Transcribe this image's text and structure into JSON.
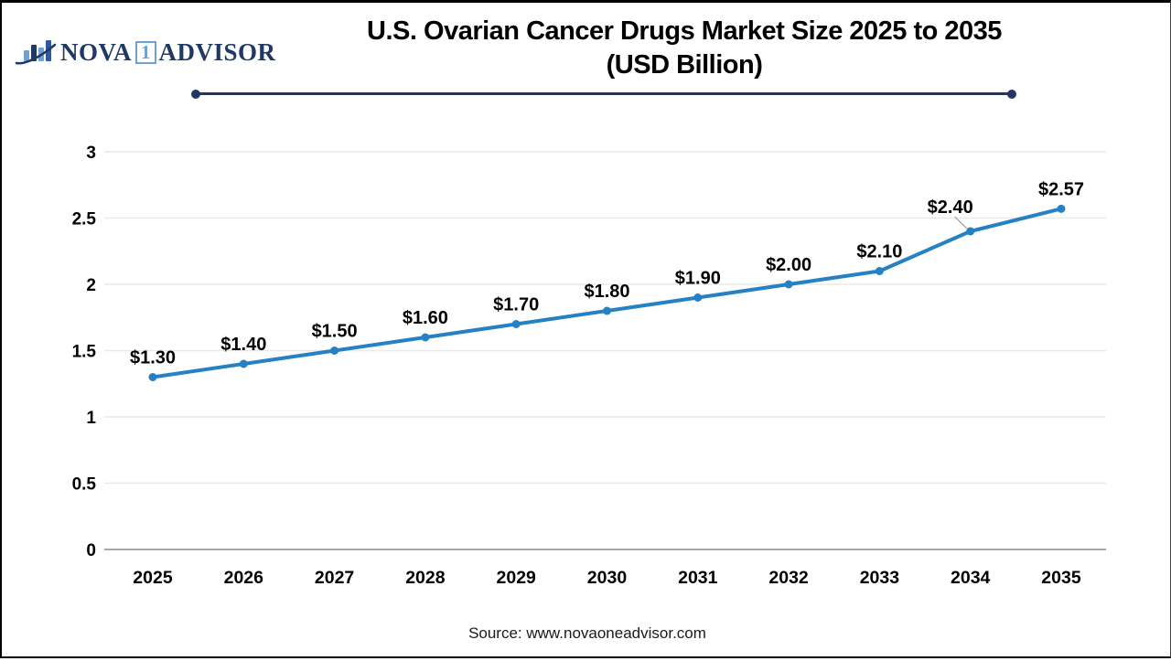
{
  "logo": {
    "name_part1": "NOVA",
    "name_badge": "1",
    "name_part2": "ADVISOR",
    "icon": "bar-chart-with-swoosh"
  },
  "footer": {
    "source": "Source: www.novaoneadvisor.com"
  },
  "colors": {
    "navy": "#1F3864",
    "logo-blue": "#6FA0D6",
    "line-blue": "#2580C4",
    "grid-gray": "#E9E9E9",
    "axis-gray": "#A8A8A8",
    "leader-gray": "#9B9B9B"
  },
  "chart_data": {
    "type": "line",
    "title": "U.S. Ovarian Cancer Drugs Market Size 2025 to 2035",
    "subtitle": "(USD Billion)",
    "categories": [
      "2025",
      "2026",
      "2027",
      "2028",
      "2029",
      "2030",
      "2031",
      "2032",
      "2033",
      "2034",
      "2035"
    ],
    "values": [
      1.3,
      1.4,
      1.5,
      1.6,
      1.7,
      1.8,
      1.9,
      2.0,
      2.1,
      2.4,
      2.57
    ],
    "point_labels": [
      "$1.30",
      "$1.40",
      "$1.50",
      "$1.60",
      "$1.70",
      "$1.80",
      "$1.90",
      "$2.00",
      "$2.10",
      "$2.40",
      "$2.57"
    ],
    "xlabel": "",
    "ylabel": "",
    "ylim": [
      0,
      3
    ],
    "y_ticks": [
      0,
      0.5,
      1,
      1.5,
      2,
      2.5,
      3
    ],
    "y_tick_labels": [
      "0",
      "0.5",
      "1",
      "1.5",
      "2",
      "2.5",
      "3"
    ],
    "grid": "horizontal-only",
    "legend": "none",
    "line_color": "#2580C4",
    "marker": "circle",
    "label_overrides": {
      "9": {
        "dx": -22,
        "dy": -20,
        "leader": true
      }
    }
  }
}
